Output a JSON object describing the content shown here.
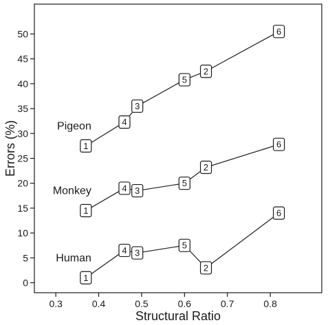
{
  "chart_data": {
    "type": "line",
    "xlabel": "Structural Ratio",
    "ylabel": "Errors (%)",
    "xlim": [
      0.25,
      0.92
    ],
    "ylim": [
      -2,
      56
    ],
    "xticks": [
      "0.3",
      "0.4",
      "0.5",
      "0.6",
      "0.7",
      "0.8"
    ],
    "yticks": [
      "0",
      "5",
      "10",
      "15",
      "20",
      "25",
      "30",
      "35",
      "40",
      "45",
      "50"
    ],
    "grid": false,
    "legend": "inline-left",
    "series": [
      {
        "name": "Pigeon",
        "points": [
          {
            "label": "1",
            "x": 0.37,
            "y": 27.5
          },
          {
            "label": "4",
            "x": 0.46,
            "y": 32.3
          },
          {
            "label": "3",
            "x": 0.49,
            "y": 35.5
          },
          {
            "label": "5",
            "x": 0.6,
            "y": 40.8
          },
          {
            "label": "2",
            "x": 0.65,
            "y": 42.5
          },
          {
            "label": "6",
            "x": 0.82,
            "y": 50.5
          }
        ]
      },
      {
        "name": "Monkey",
        "points": [
          {
            "label": "1",
            "x": 0.37,
            "y": 14.5
          },
          {
            "label": "4",
            "x": 0.46,
            "y": 19.0
          },
          {
            "label": "3",
            "x": 0.49,
            "y": 18.5
          },
          {
            "label": "5",
            "x": 0.6,
            "y": 20.0
          },
          {
            "label": "2",
            "x": 0.65,
            "y": 23.2
          },
          {
            "label": "6",
            "x": 0.82,
            "y": 27.8
          }
        ]
      },
      {
        "name": "Human",
        "points": [
          {
            "label": "1",
            "x": 0.37,
            "y": 1.0
          },
          {
            "label": "4",
            "x": 0.46,
            "y": 6.5
          },
          {
            "label": "3",
            "x": 0.49,
            "y": 6.0
          },
          {
            "label": "5",
            "x": 0.6,
            "y": 7.5
          },
          {
            "label": "2",
            "x": 0.65,
            "y": 3.0
          },
          {
            "label": "6",
            "x": 0.82,
            "y": 14.0
          }
        ]
      }
    ]
  }
}
